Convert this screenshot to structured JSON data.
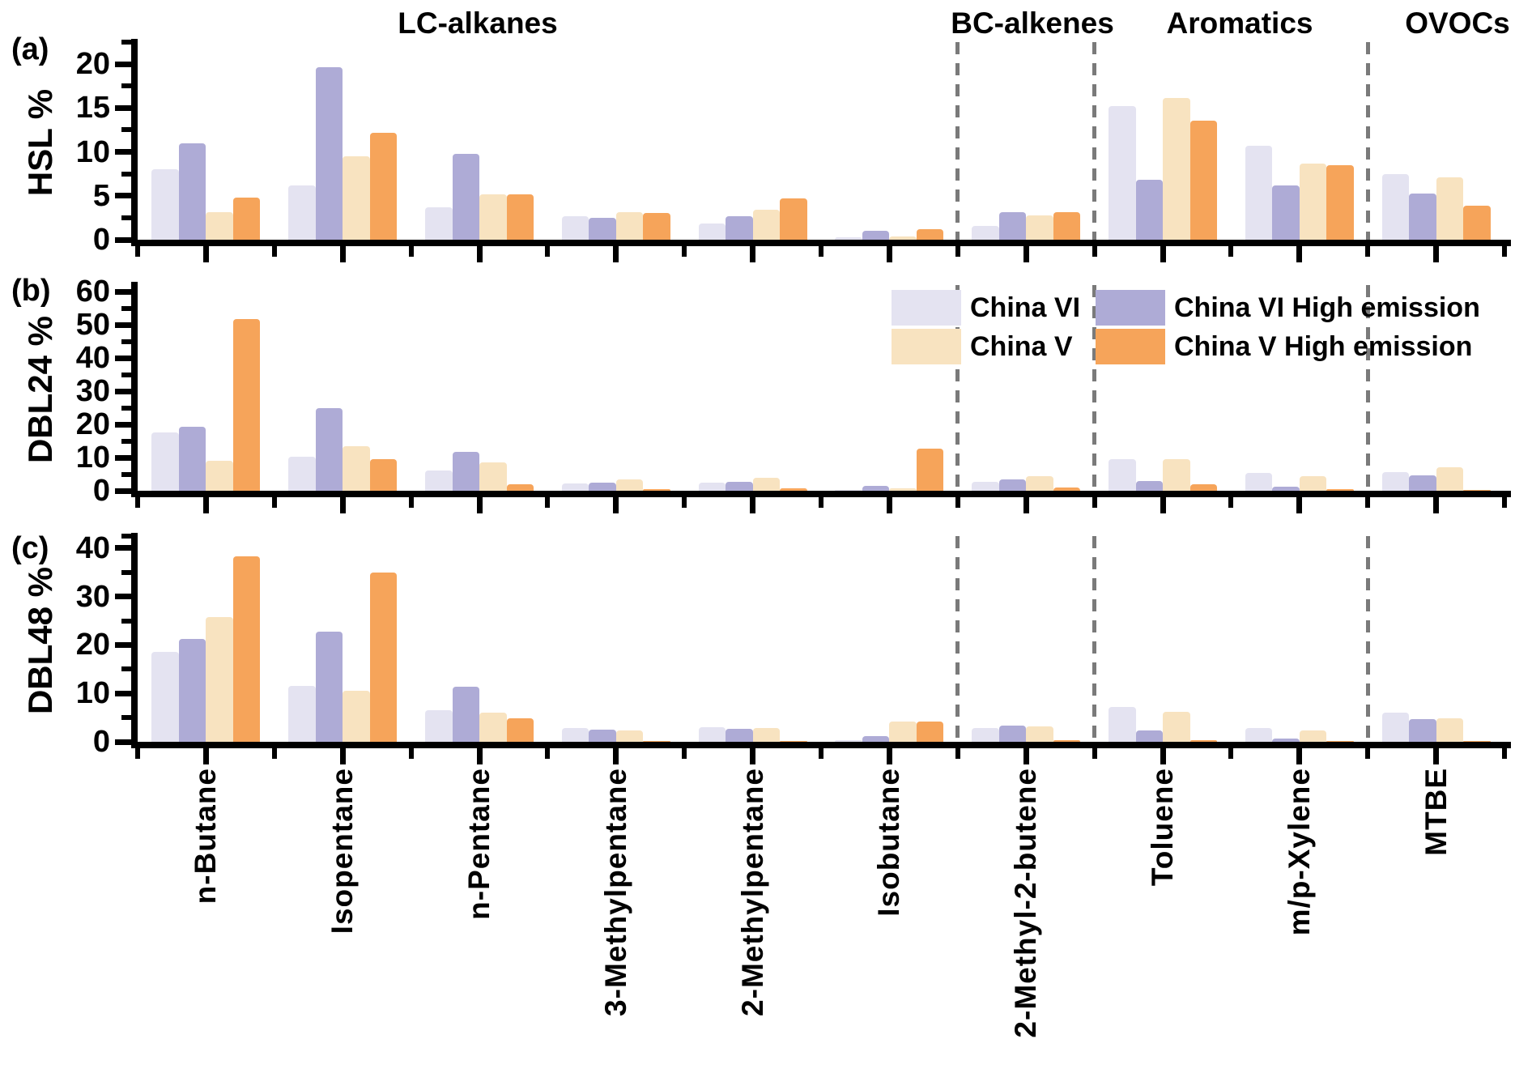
{
  "groups": [
    {
      "label": "LC-alkanes"
    },
    {
      "label": "BC-alkenes"
    },
    {
      "label": "Aromatics"
    },
    {
      "label": "OVOCs"
    }
  ],
  "group_separators_after": [
    "Isobutane",
    "2-Methyl-2-butene",
    "m/p-Xylene"
  ],
  "categories": [
    "n-Butane",
    "Isopentane",
    "n-Pentane",
    "3-Methylpentane",
    "2-Methylpentane",
    "Isobutane",
    "2-Methyl-2-butene",
    "Toluene",
    "m/p-Xylene",
    "MTBE"
  ],
  "legend": {
    "items": [
      {
        "label": "China VI",
        "color": "#e4e3f1"
      },
      {
        "label": "China VI High emission",
        "color": "#aeabd6"
      },
      {
        "label": "China V",
        "color": "#f8e3c0"
      },
      {
        "label": "China V High emission",
        "color": "#f6a45a"
      }
    ]
  },
  "colors": {
    "axis": "#000000",
    "separator": "#7a7a7a",
    "china_vi": "#e4e3f1",
    "china_vi_high": "#aeabd6",
    "china_v": "#f8e3c0",
    "china_v_high": "#f6a45a"
  },
  "chart_data": [
    {
      "type": "bar",
      "panel": "(a)",
      "ylabel": "HSL %",
      "ylim": [
        0,
        22.5
      ],
      "y_ticks": [
        0,
        5,
        10,
        15,
        20
      ],
      "y_minor_ticks": [
        2.5,
        7.5,
        12.5,
        17.5,
        22.5
      ],
      "grid": false,
      "categories": [
        "n-Butane",
        "Isopentane",
        "n-Pentane",
        "3-Methylpentane",
        "2-Methylpentane",
        "Isobutane",
        "2-Methyl-2-butene",
        "Toluene",
        "m/p-Xylene",
        "MTBE"
      ],
      "series": [
        {
          "name": "China VI",
          "color": "#e4e3f1",
          "values": [
            8.0,
            6.2,
            3.7,
            2.7,
            1.8,
            0.3,
            1.6,
            15.2,
            10.7,
            7.5
          ]
        },
        {
          "name": "China VI High emission",
          "color": "#aeabd6",
          "values": [
            11.0,
            19.6,
            9.8,
            2.5,
            2.7,
            1.0,
            3.1,
            6.8,
            6.2,
            5.3
          ]
        },
        {
          "name": "China V",
          "color": "#f8e3c0",
          "values": [
            3.1,
            9.5,
            5.2,
            3.1,
            3.4,
            0.4,
            2.8,
            16.1,
            8.7,
            7.1
          ]
        },
        {
          "name": "China V High emission",
          "color": "#f6a45a",
          "values": [
            4.8,
            12.2,
            5.2,
            3.0,
            4.7,
            1.2,
            3.1,
            13.6,
            8.5,
            3.9
          ]
        }
      ]
    },
    {
      "type": "bar",
      "panel": "(b)",
      "ylabel": "DBL24 %",
      "ylim": [
        0,
        62
      ],
      "y_ticks": [
        0,
        10,
        20,
        30,
        40,
        50,
        60
      ],
      "y_minor_ticks": [
        5,
        15,
        25,
        35,
        45,
        55
      ],
      "grid": false,
      "legend_position": "upper right inside",
      "categories": [
        "n-Butane",
        "Isopentane",
        "n-Pentane",
        "3-Methylpentane",
        "2-Methylpentane",
        "Isobutane",
        "2-Methyl-2-butene",
        "Toluene",
        "m/p-Xylene",
        "MTBE"
      ],
      "series": [
        {
          "name": "China VI",
          "color": "#e4e3f1",
          "values": [
            17.5,
            10.2,
            6.2,
            2.2,
            2.4,
            0.3,
            2.6,
            9.5,
            5.4,
            5.6
          ]
        },
        {
          "name": "China VI High emission",
          "color": "#aeabd6",
          "values": [
            19.2,
            25.0,
            11.8,
            2.4,
            2.8,
            1.4,
            3.4,
            3.0,
            1.1,
            4.6
          ]
        },
        {
          "name": "China V",
          "color": "#f8e3c0",
          "values": [
            9.0,
            13.5,
            8.5,
            3.3,
            3.8,
            0.7,
            4.4,
            9.6,
            4.4,
            7.2
          ]
        },
        {
          "name": "China V High emission",
          "color": "#f6a45a",
          "values": [
            51.8,
            9.4,
            2.0,
            0.4,
            0.8,
            12.7,
            0.9,
            1.9,
            0.6,
            0.2
          ]
        }
      ]
    },
    {
      "type": "bar",
      "panel": "(c)",
      "ylabel": "DBL48 %",
      "ylim": [
        0,
        42.5
      ],
      "y_ticks": [
        0,
        10,
        20,
        30,
        40
      ],
      "y_minor_ticks": [
        5,
        15,
        25,
        35,
        42.5
      ],
      "grid": false,
      "categories": [
        "n-Butane",
        "Isopentane",
        "n-Pentane",
        "3-Methylpentane",
        "2-Methylpentane",
        "Isobutane",
        "2-Methyl-2-butene",
        "Toluene",
        "m/p-Xylene",
        "MTBE"
      ],
      "series": [
        {
          "name": "China VI",
          "color": "#e4e3f1",
          "values": [
            18.5,
            11.5,
            6.5,
            2.8,
            3.0,
            0.3,
            2.8,
            7.2,
            2.9,
            6.0
          ]
        },
        {
          "name": "China VI High emission",
          "color": "#aeabd6",
          "values": [
            21.2,
            22.8,
            11.4,
            2.5,
            2.7,
            1.2,
            3.4,
            2.3,
            0.6,
            4.7
          ]
        },
        {
          "name": "China V",
          "color": "#f8e3c0",
          "values": [
            25.8,
            10.5,
            6.0,
            2.3,
            2.8,
            4.1,
            3.1,
            6.2,
            2.4,
            4.9
          ]
        },
        {
          "name": "China V High emission",
          "color": "#f6a45a",
          "values": [
            38.3,
            35.0,
            4.9,
            0.1,
            0.2,
            4.2,
            0.3,
            0.3,
            0.1,
            0.1
          ]
        }
      ]
    }
  ]
}
